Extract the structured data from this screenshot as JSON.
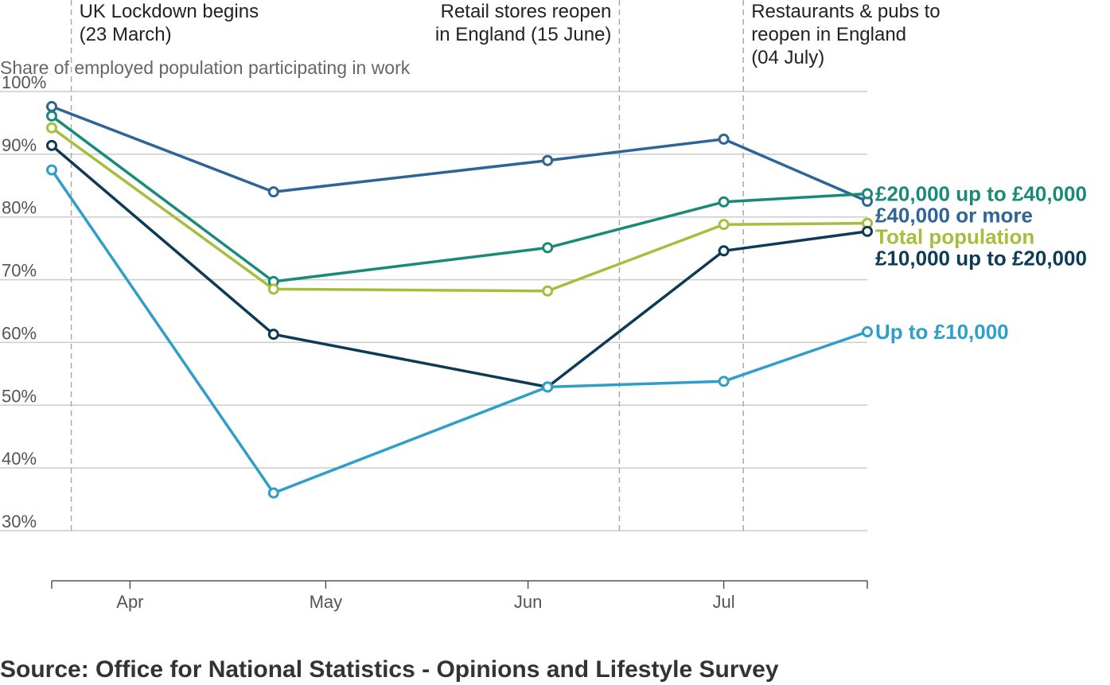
{
  "chart_data": {
    "type": "line",
    "y_axis_title": "Share of employed population participating in work",
    "y_ticks": [
      "100%",
      "90%",
      "80%",
      "70%",
      "60%",
      "50%",
      "40%",
      "30%"
    ],
    "y_tick_values": [
      100,
      90,
      80,
      70,
      60,
      50,
      40,
      30
    ],
    "ylim": [
      30,
      100
    ],
    "x_ticks": [
      "Apr",
      "May",
      "Jun",
      "Jul"
    ],
    "x_tick_values": [
      "2020-04-01",
      "2020-05-01",
      "2020-06-01",
      "2020-07-01"
    ],
    "xlim": [
      "2020-03-20",
      "2020-07-23"
    ],
    "x": [
      "2020-03-20",
      "2020-04-23",
      "2020-06-04",
      "2020-07-01",
      "2020-07-23"
    ],
    "series": [
      {
        "name": "£40,000 or more",
        "color": "#2e6496",
        "values": [
          97.6,
          84.0,
          89.0,
          92.4,
          82.5
        ]
      },
      {
        "name": "£20,000 up to £40,000",
        "color": "#1a8a78",
        "values": [
          96.1,
          69.7,
          75.1,
          82.4,
          83.7
        ]
      },
      {
        "name": "Total population",
        "color": "#a6be3c",
        "values": [
          94.2,
          68.5,
          68.2,
          78.8,
          79.0
        ]
      },
      {
        "name": "£10,000 up to £20,000",
        "color": "#0d3b55",
        "values": [
          91.4,
          61.3,
          52.9,
          74.6,
          77.7
        ]
      },
      {
        "name": "Up to £10,000",
        "color": "#2f9ec9",
        "values": [
          87.5,
          36.0,
          52.9,
          53.8,
          61.7
        ]
      }
    ],
    "annotations": [
      {
        "date": "2020-03-23",
        "lines": [
          "UK Lockdown begins",
          "(23 March)"
        ]
      },
      {
        "date": "2020-06-15",
        "lines": [
          "Retail stores reopen",
          "in England (15 June)"
        ]
      },
      {
        "date": "2020-07-04",
        "lines": [
          "Restaurants & pubs to",
          "reopen in England",
          "(04 July)"
        ]
      }
    ],
    "grid": true
  },
  "source": "Source: Office for National Statistics - Opinions and Lifestyle Survey"
}
